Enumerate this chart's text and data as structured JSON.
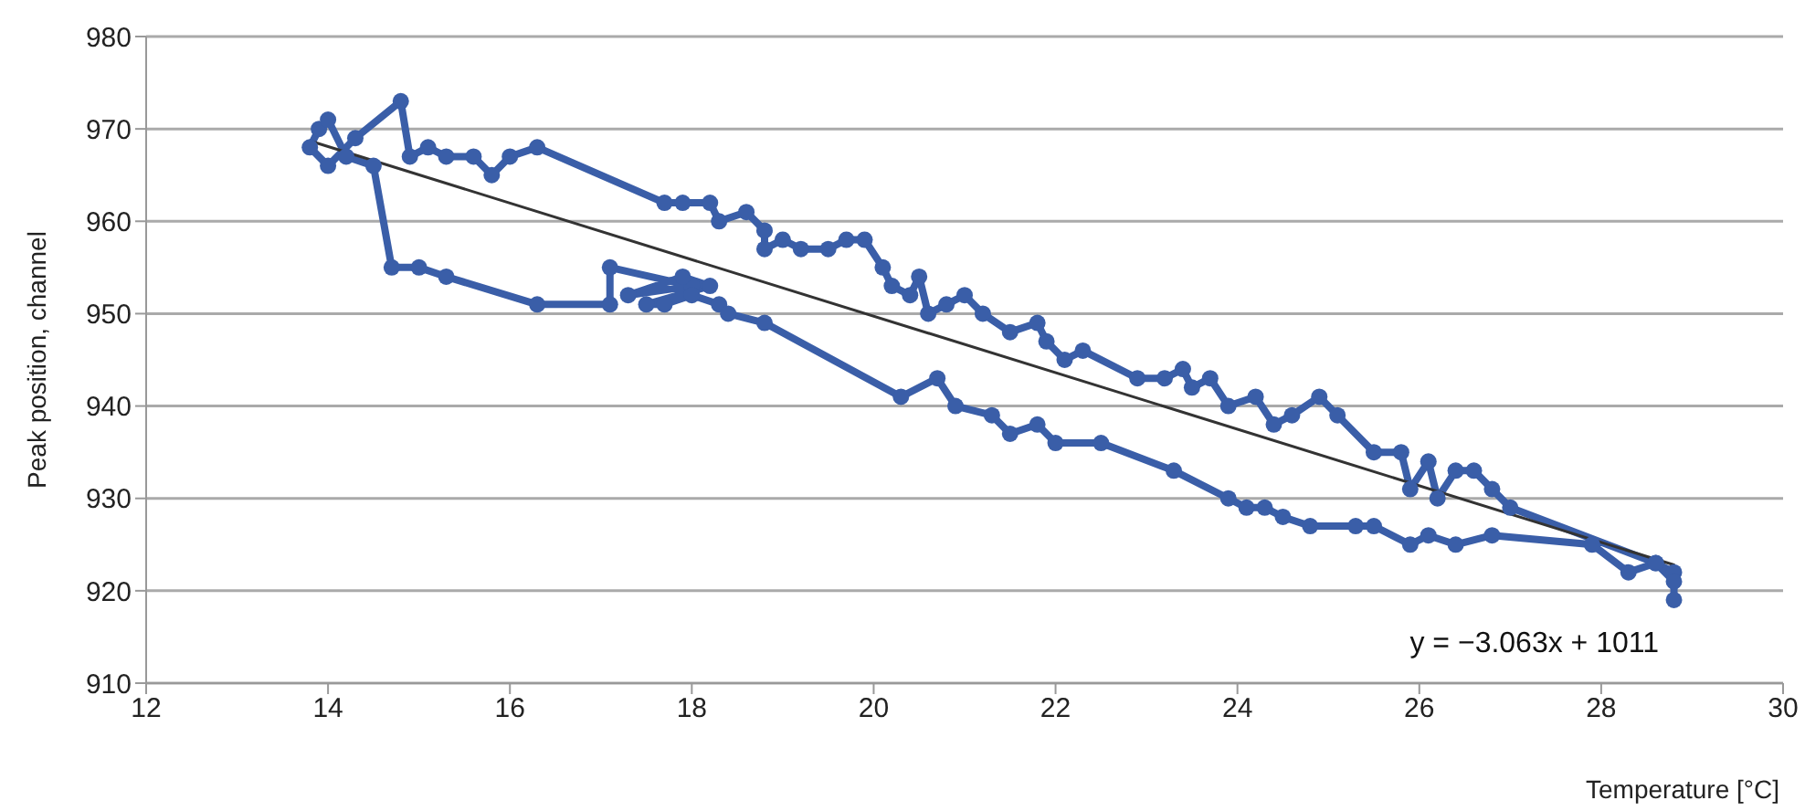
{
  "chart_data": {
    "type": "line",
    "xlabel": "Temperature [°C]",
    "ylabel": "Peak position, channel",
    "xlim": [
      12,
      30
    ],
    "xticks": [
      12,
      14,
      16,
      18,
      20,
      22,
      24,
      26,
      28,
      30
    ],
    "ylim": [
      910,
      980
    ],
    "yticks": [
      910,
      920,
      930,
      940,
      950,
      960,
      970,
      980
    ],
    "grid": "y",
    "marker": "circle",
    "line_style": "solid",
    "annotations": [
      "y = −3.063x + 1011"
    ],
    "series": [
      {
        "color": "#3a5ea8",
        "x": [
          28.8,
          28.6,
          27.0,
          26.8,
          26.6,
          26.4,
          26.2,
          26.1,
          25.9,
          25.8,
          25.5,
          25.1,
          24.9,
          24.6,
          24.4,
          24.2,
          23.9,
          23.7,
          23.5,
          23.4,
          23.2,
          22.9,
          22.3,
          22.1,
          21.9,
          21.8,
          21.5,
          21.2,
          21.0,
          20.8,
          20.6,
          20.5,
          20.4,
          20.2,
          20.1,
          19.9,
          19.7,
          19.5,
          19.2,
          19.0,
          18.8,
          18.8,
          18.6,
          18.3,
          18.2,
          17.9,
          17.7,
          16.3,
          16.0,
          15.8,
          15.6,
          15.3,
          15.1,
          14.9,
          14.8,
          14.3,
          14.0,
          13.8,
          13.9,
          14.0,
          14.2,
          14.5,
          14.7,
          15.0,
          15.3,
          16.3,
          17.1,
          17.1,
          18.0,
          17.3,
          17.9,
          18.2,
          17.5,
          17.7,
          18.0,
          18.3,
          18.4,
          18.8,
          20.3,
          20.7,
          20.9,
          21.3,
          21.5,
          21.8,
          22.0,
          22.5,
          23.3,
          23.9,
          24.1,
          24.3,
          24.5,
          24.8,
          25.3,
          25.5,
          25.9,
          26.1,
          26.4,
          26.8,
          27.9,
          28.3,
          28.6,
          28.8,
          28.8
        ],
        "values": [
          922,
          923,
          929,
          931,
          933,
          933,
          930,
          934,
          931,
          935,
          935,
          939,
          941,
          939,
          938,
          941,
          940,
          943,
          942,
          944,
          943,
          943,
          946,
          945,
          947,
          949,
          948,
          950,
          952,
          951,
          950,
          954,
          952,
          953,
          955,
          958,
          958,
          957,
          957,
          958,
          957,
          959,
          961,
          960,
          962,
          962,
          962,
          968,
          967,
          965,
          967,
          967,
          968,
          967,
          973,
          969,
          966,
          968,
          970,
          971,
          967,
          966,
          955,
          955,
          954,
          951,
          951,
          955,
          953,
          952,
          954,
          953,
          951,
          951,
          952,
          951,
          950,
          949,
          941,
          943,
          940,
          939,
          937,
          938,
          936,
          936,
          933,
          930,
          929,
          929,
          928,
          927,
          927,
          927,
          925,
          926,
          925,
          926,
          925,
          922,
          923,
          921,
          919
        ]
      },
      {
        "type": "line",
        "color": "#333333",
        "marker": "none",
        "x": [
          13.8,
          28.8
        ],
        "values": [
          968.7,
          922.8
        ]
      }
    ]
  }
}
